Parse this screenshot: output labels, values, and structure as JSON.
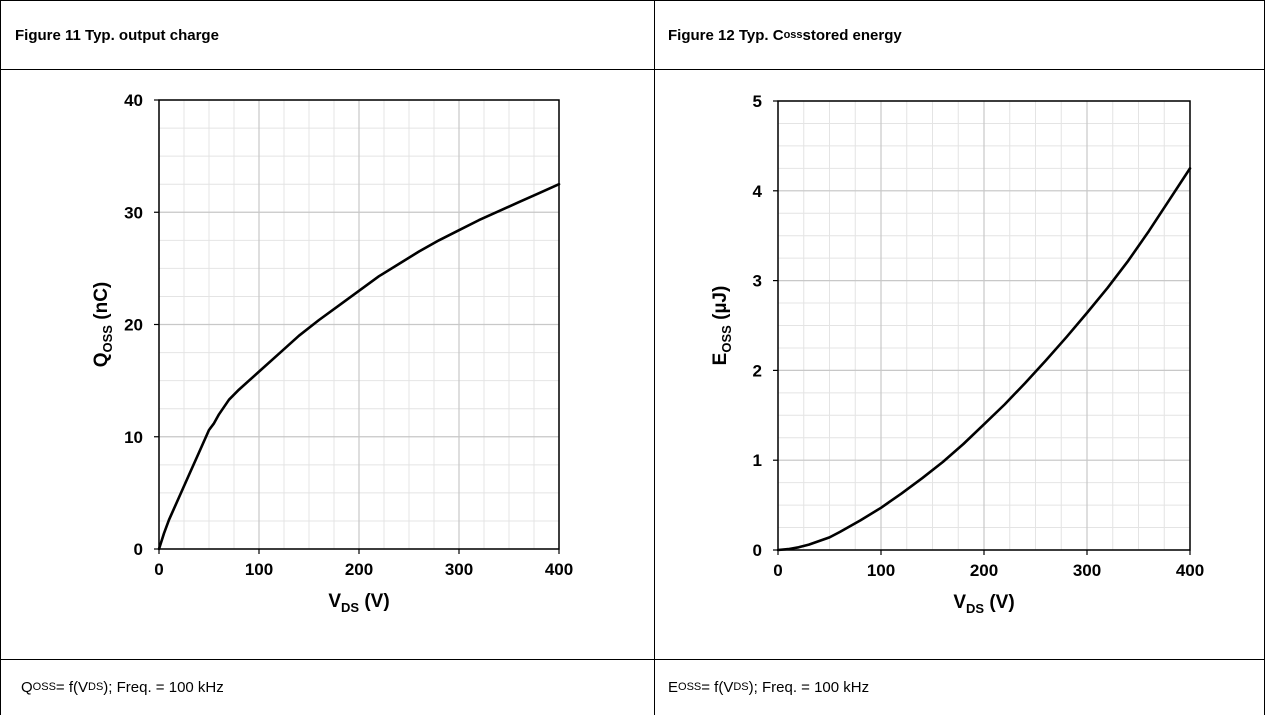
{
  "figure_left": {
    "number_title": "Figure 11 Typ. output charge",
    "caption_q": "Q",
    "caption_q_sub": "OSS",
    "caption_mid": " = f(V",
    "caption_v_sub": "DS",
    "caption_tail": "); Freq. = 100 kHz"
  },
  "figure_right": {
    "title_main": "Figure 12 Typ. C",
    "title_sub": "oss",
    "title_tail": " stored energy",
    "caption_e": "E",
    "caption_e_sub": "OSS",
    "caption_mid": " = f(V",
    "caption_v_sub": "DS",
    "caption_tail": "); Freq. = 100 kHz"
  },
  "colors": {
    "line": "#000000",
    "grid_major": "#c8c8c8",
    "grid_minor": "#e4e4e4",
    "frame": "#000000"
  },
  "chart_data": [
    {
      "type": "line",
      "xlabel_main": "V",
      "xlabel_sub": "DS",
      "xlabel_unit": " (V)",
      "ylabel_main": "Q",
      "ylabel_sub": "OSS",
      "ylabel_unit": " (nC)",
      "xlim": [
        0,
        400
      ],
      "ylim": [
        0,
        40
      ],
      "xticks": [
        0,
        100,
        200,
        300,
        400
      ],
      "yticks": [
        0,
        10,
        20,
        30,
        40
      ],
      "x_minor_step": 25,
      "y_minor_step": 2.5,
      "grid": true,
      "series": [
        {
          "x": [
            0,
            5,
            10,
            20,
            30,
            40,
            50,
            55,
            60,
            70,
            80,
            100,
            120,
            140,
            160,
            180,
            200,
            220,
            240,
            260,
            280,
            300,
            320,
            340,
            360,
            380,
            400
          ],
          "values": [
            0,
            1.4,
            2.6,
            4.6,
            6.6,
            8.6,
            10.6,
            11.2,
            12.0,
            13.3,
            14.2,
            15.8,
            17.4,
            19.0,
            20.4,
            21.7,
            23.0,
            24.3,
            25.4,
            26.5,
            27.5,
            28.4,
            29.3,
            30.1,
            30.9,
            31.7,
            32.5
          ]
        }
      ]
    },
    {
      "type": "line",
      "xlabel_main": "V",
      "xlabel_sub": "DS",
      "xlabel_unit": " (V)",
      "ylabel_main": "E",
      "ylabel_sub": "OSS",
      "ylabel_unit": " (µJ)",
      "xlim": [
        0,
        400
      ],
      "ylim": [
        0,
        5
      ],
      "xticks": [
        0,
        100,
        200,
        300,
        400
      ],
      "yticks": [
        0,
        1,
        2,
        3,
        4,
        5
      ],
      "x_minor_step": 25,
      "y_minor_step": 0.25,
      "grid": true,
      "series": [
        {
          "x": [
            0,
            10,
            20,
            30,
            40,
            50,
            60,
            80,
            100,
            120,
            140,
            160,
            180,
            200,
            220,
            240,
            260,
            280,
            300,
            320,
            340,
            360,
            380,
            400
          ],
          "values": [
            0,
            0.01,
            0.03,
            0.06,
            0.1,
            0.14,
            0.2,
            0.33,
            0.47,
            0.63,
            0.8,
            0.98,
            1.18,
            1.4,
            1.62,
            1.86,
            2.11,
            2.37,
            2.64,
            2.92,
            3.22,
            3.55,
            3.9,
            4.25
          ]
        }
      ]
    }
  ]
}
